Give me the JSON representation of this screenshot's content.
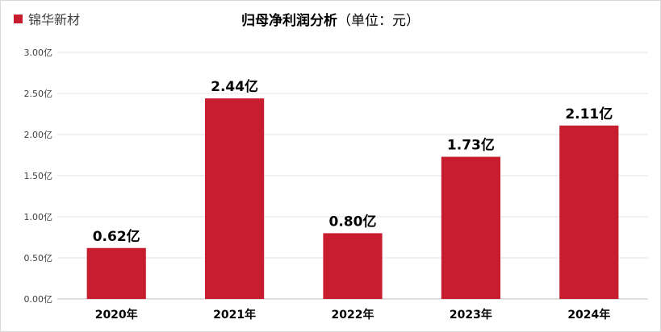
{
  "legend": {
    "label": "锦华新材",
    "color": "#c81d2e"
  },
  "title": {
    "main": "归母净利润分析",
    "unit": "（单位：元）"
  },
  "chart_data": {
    "type": "bar",
    "categories": [
      "2020年",
      "2021年",
      "2022年",
      "2023年",
      "2024年"
    ],
    "series": [
      {
        "name": "锦华新材",
        "values": [
          0.62,
          2.44,
          0.8,
          1.73,
          2.11
        ],
        "color": "#c81d2e"
      }
    ],
    "data_labels": [
      "0.62亿",
      "2.44亿",
      "0.80亿",
      "1.73亿",
      "2.11亿"
    ],
    "y_ticks": [
      "0.00亿",
      "0.50亿",
      "1.00亿",
      "1.50亿",
      "2.00亿",
      "2.50亿",
      "3.00亿"
    ],
    "ylim": [
      0,
      3
    ],
    "grid": true,
    "legend_position": "top-left"
  }
}
